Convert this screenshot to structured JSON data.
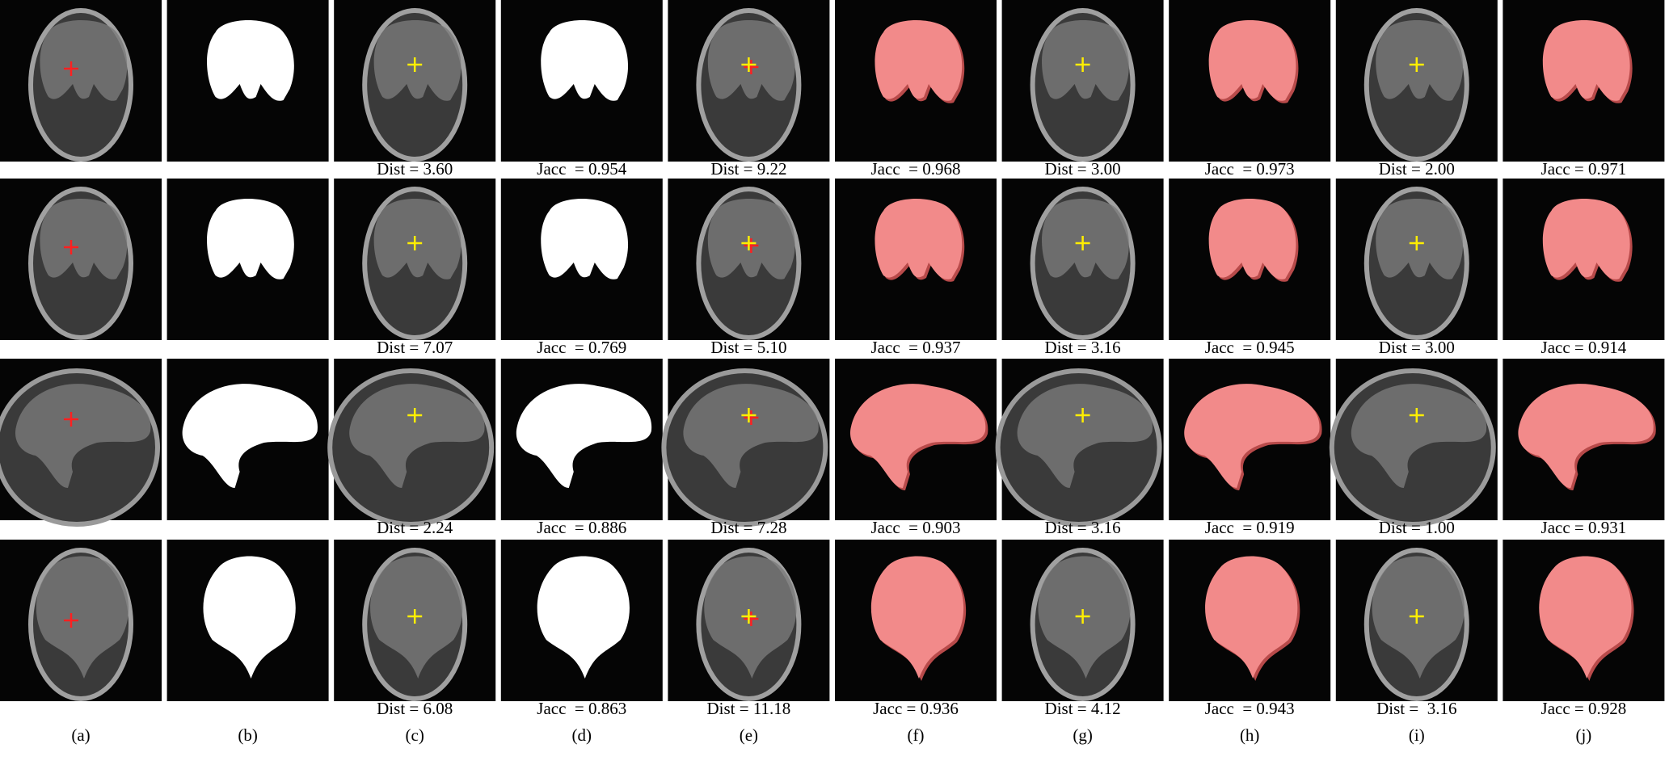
{
  "figure": {
    "rows": [
      {
        "labels": [
          "Dist = 3.60",
          "Jacc  = 0.954",
          "Dist = 9.22",
          "Jacc  = 0.968",
          "Dist = 3.00",
          "Jacc  = 0.973",
          "Dist = 2.00",
          "Jacc = 0.971"
        ]
      },
      {
        "labels": [
          "Dist = 7.07",
          "Jacc  = 0.769",
          "Dist = 5.10",
          "Jacc  = 0.937",
          "Dist = 3.16",
          "Jacc  = 0.945",
          "Dist = 3.00",
          "Jacc = 0.914"
        ]
      },
      {
        "labels": [
          "Dist = 2.24",
          "Jacc  = 0.886",
          "Dist = 7.28",
          "Jacc  = 0.903",
          "Dist = 3.16",
          "Jacc  = 0.919",
          "Dist = 1.00",
          "Jacc = 0.931"
        ]
      },
      {
        "labels": [
          "Dist = 6.08",
          "Jacc  = 0.863",
          "Dist = 11.18",
          "Jacc = 0.936",
          "Dist = 4.12",
          "Jacc  = 0.943",
          "Dist =  3.16",
          "Jacc = 0.928"
        ]
      }
    ],
    "column_captions": [
      "(a)",
      "(b)",
      "(c)",
      "(d)",
      "(e)",
      "(f)",
      "(g)",
      "(h)",
      "(i)",
      "(j)"
    ]
  }
}
